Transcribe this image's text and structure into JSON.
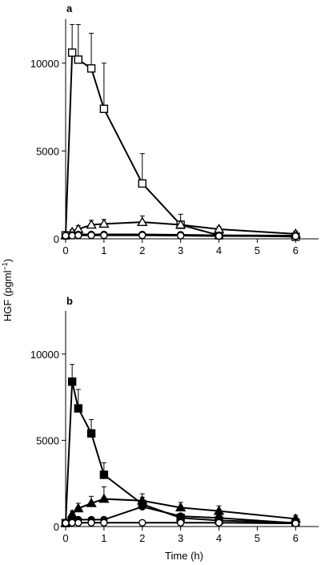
{
  "figure": {
    "ylabel": "HGF (pgml",
    "ylabel_sup": "−1",
    "ylabel_close": ")",
    "xlabel": "Time (h)"
  },
  "chart_data": [
    {
      "panel": "a",
      "type": "line",
      "xlim": [
        0,
        6.6
      ],
      "ylim": [
        0,
        12500
      ],
      "xticks": [
        0,
        1,
        2,
        3,
        4,
        5,
        6
      ],
      "yticks": [
        0,
        5000,
        10000
      ],
      "series": [
        {
          "marker": "open-square",
          "x": [
            0,
            0.17,
            0.33,
            0.67,
            1,
            2,
            3,
            4,
            6
          ],
          "y": [
            200,
            10600,
            10200,
            9700,
            7400,
            3150,
            800,
            200,
            120
          ],
          "err": [
            0,
            1600,
            2000,
            2000,
            2600,
            1700,
            600,
            100,
            80
          ]
        },
        {
          "marker": "open-triangle",
          "x": [
            0,
            0.17,
            0.33,
            0.67,
            1,
            2,
            3,
            4,
            6
          ],
          "y": [
            200,
            380,
            550,
            800,
            850,
            950,
            800,
            550,
            280
          ],
          "err": [
            0,
            150,
            200,
            250,
            250,
            350,
            200,
            150,
            150
          ]
        },
        {
          "marker": "filled-circle",
          "x": [
            0,
            0.17,
            0.33,
            0.67,
            1,
            2,
            3,
            4,
            6
          ],
          "y": [
            150,
            220,
            250,
            250,
            250,
            250,
            230,
            200,
            180
          ],
          "err": [
            0,
            50,
            50,
            50,
            50,
            50,
            50,
            50,
            50
          ]
        },
        {
          "marker": "open-circle",
          "x": [
            0,
            0.17,
            0.33,
            0.67,
            1,
            2,
            3,
            4,
            6
          ],
          "y": [
            180,
            180,
            200,
            200,
            200,
            200,
            180,
            160,
            150
          ],
          "err": [
            0,
            0,
            0,
            0,
            0,
            0,
            0,
            0,
            0
          ]
        }
      ]
    },
    {
      "panel": "b",
      "type": "line",
      "xlim": [
        0,
        6.6
      ],
      "ylim": [
        0,
        12500
      ],
      "xticks": [
        0,
        1,
        2,
        3,
        4,
        5,
        6
      ],
      "yticks": [
        0,
        5000,
        10000
      ],
      "series": [
        {
          "marker": "filled-square",
          "x": [
            0,
            0.17,
            0.33,
            0.67,
            1,
            2,
            3,
            4,
            6
          ],
          "y": [
            200,
            8400,
            6850,
            5400,
            3000,
            1300,
            500,
            350,
            220
          ],
          "err": [
            0,
            1000,
            1100,
            800,
            700,
            400,
            200,
            150,
            80
          ]
        },
        {
          "marker": "filled-triangle",
          "x": [
            0,
            0.17,
            0.33,
            0.67,
            1,
            2,
            3,
            4,
            6
          ],
          "y": [
            200,
            700,
            1050,
            1350,
            1600,
            1500,
            1100,
            900,
            450
          ],
          "err": [
            0,
            200,
            300,
            400,
            700,
            400,
            300,
            300,
            200
          ]
        },
        {
          "marker": "filled-circle",
          "x": [
            0,
            0.17,
            0.33,
            0.67,
            1,
            2,
            3,
            4,
            6
          ],
          "y": [
            200,
            350,
            400,
            400,
            400,
            1150,
            600,
            500,
            200
          ],
          "err": [
            0,
            100,
            100,
            100,
            100,
            200,
            150,
            100,
            80
          ]
        },
        {
          "marker": "open-circle",
          "x": [
            0,
            0.17,
            0.33,
            0.67,
            1,
            2,
            3,
            4,
            6
          ],
          "y": [
            200,
            220,
            220,
            220,
            220,
            220,
            220,
            220,
            180
          ],
          "err": [
            0,
            0,
            0,
            0,
            0,
            0,
            0,
            0,
            0
          ]
        }
      ]
    }
  ]
}
